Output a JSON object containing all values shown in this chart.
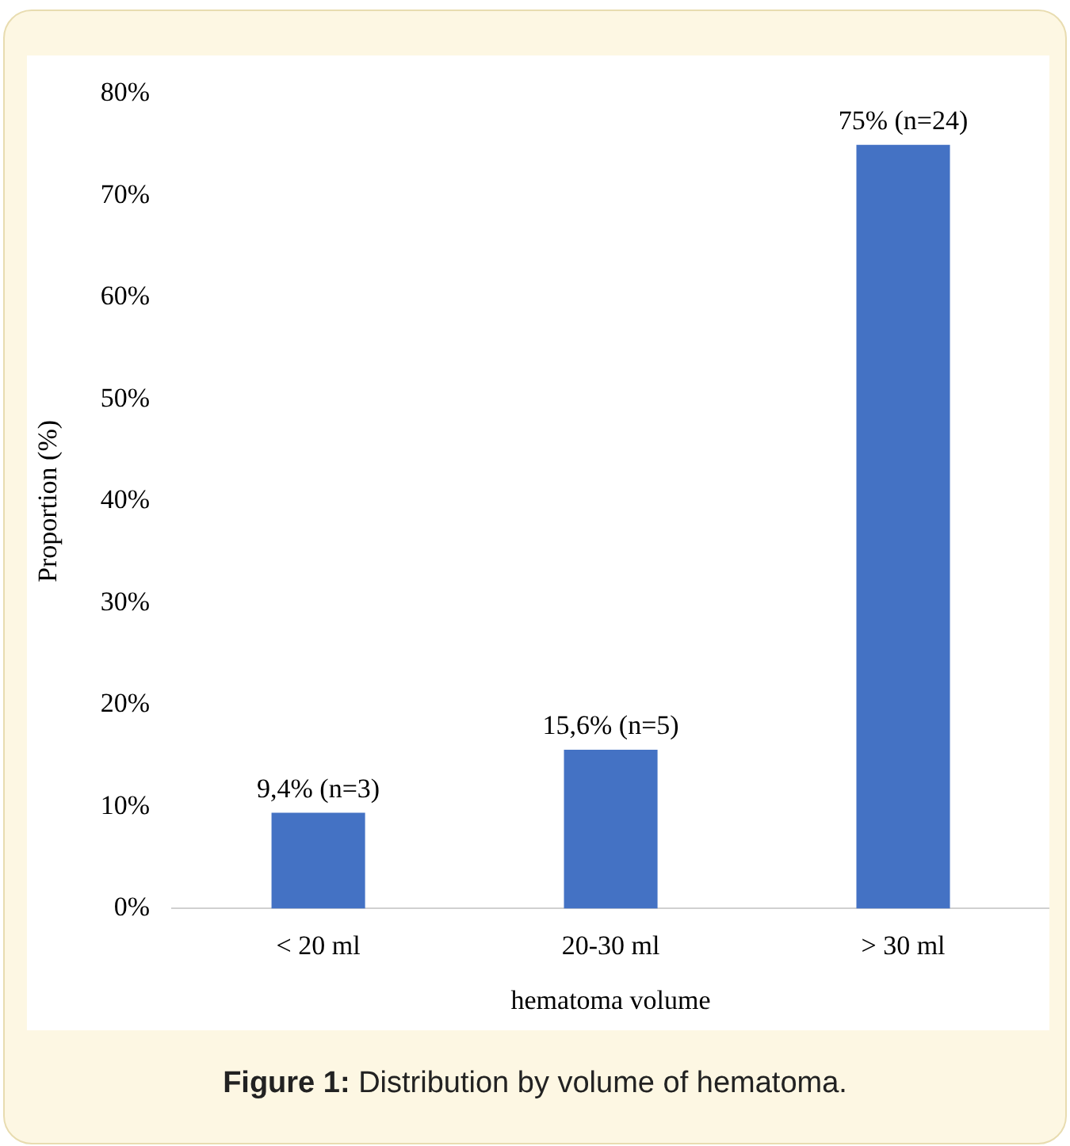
{
  "chart_data": {
    "type": "bar",
    "xlabel": "hematoma volume",
    "ylabel": "Proportion (%)",
    "categories": [
      "< 20 ml",
      "20-30 ml",
      "> 30 ml"
    ],
    "values": [
      9.4,
      15.6,
      75
    ],
    "color": "#4472c4",
    "value_labels": [
      "9,4% (n=3)",
      "15,6% (n=5)",
      "75% (n=24)"
    ],
    "ylim": [
      0,
      80
    ],
    "yticks": [
      {
        "value": 0,
        "label": "0%"
      },
      {
        "value": 10,
        "label": "10%"
      },
      {
        "value": 20,
        "label": "20%"
      },
      {
        "value": 30,
        "label": "30%"
      },
      {
        "value": 40,
        "label": "40%"
      },
      {
        "value": 50,
        "label": "50%"
      },
      {
        "value": 60,
        "label": "60%"
      },
      {
        "value": 70,
        "label": "70%"
      },
      {
        "value": 80,
        "label": "80%"
      }
    ],
    "grid": false,
    "legend": false,
    "annotations": [
      "Figure 1: Distribution by volume of hematoma."
    ]
  }
}
